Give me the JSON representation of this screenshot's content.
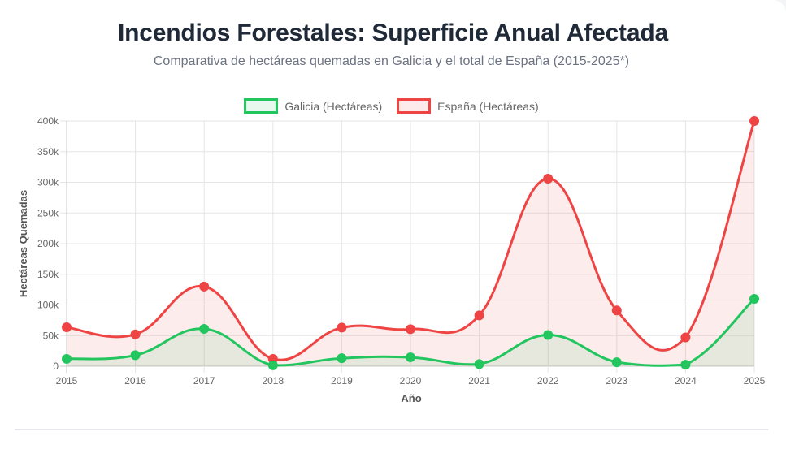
{
  "header": {
    "title": "Incendios Forestales: Superficie Anual Afectada",
    "subtitle": "Comparativa de hectáreas quemadas en Galicia y el total de España (2015-2025*)"
  },
  "legend": {
    "items": [
      {
        "label": "Galicia (Hectáreas)",
        "color": "#22c55e",
        "fill": "#e8f8ee"
      },
      {
        "label": "España (Hectáreas)",
        "color": "#ef4444",
        "fill": "#fdeaea"
      }
    ]
  },
  "chart_data": {
    "type": "line",
    "title": "Incendios Forestales: Superficie Anual Afectada",
    "subtitle": "Comparativa de hectáreas quemadas en Galicia y el total de España (2015-2025*)",
    "xlabel": "Año",
    "ylabel": "Hectáreas Quemadas",
    "categories": [
      "2015",
      "2016",
      "2017",
      "2018",
      "2019",
      "2020",
      "2021",
      "2022",
      "2023",
      "2024",
      "2025"
    ],
    "series": [
      {
        "name": "Galicia (Hectáreas)",
        "color": "#22c55e",
        "fill": "rgba(34,197,94,0.1)",
        "values": [
          12000,
          18000,
          61000,
          1500,
          13000,
          14500,
          3500,
          51000,
          6500,
          2500,
          110000
        ]
      },
      {
        "name": "España (Hectáreas)",
        "color": "#ef4444",
        "fill": "rgba(239,68,68,0.1)",
        "values": [
          63500,
          52000,
          130000,
          12000,
          63000,
          60500,
          83000,
          306000,
          91000,
          47000,
          400000
        ]
      }
    ],
    "ylim": [
      0,
      400000
    ],
    "yticks": [
      "0",
      "50k",
      "100k",
      "150k",
      "200k",
      "250k",
      "300k",
      "350k",
      "400k"
    ],
    "grid": true,
    "legend_position": "top",
    "filled_area": true
  }
}
